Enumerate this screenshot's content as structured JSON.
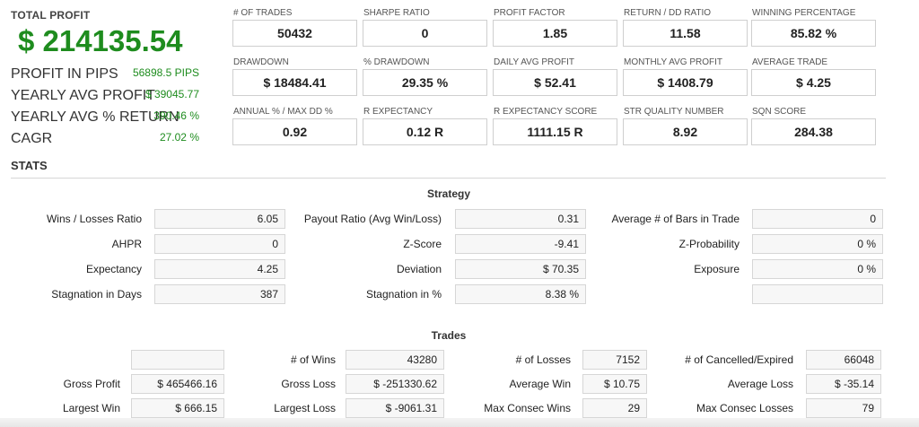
{
  "summary": {
    "total_profit_label": "TOTAL PROFIT",
    "total_profit_value": "$ 214135.54",
    "rows": [
      {
        "label": "PROFIT IN PIPS",
        "value": "56898.5 PIPS"
      },
      {
        "label": "YEARLY AVG PROFIT",
        "value": "$ 39045.77"
      },
      {
        "label": "YEARLY AVG % RETURN",
        "value": "390.46 %"
      },
      {
        "label": "CAGR",
        "value": "27.02 %"
      }
    ]
  },
  "metrics": [
    {
      "label": "# OF TRADES",
      "value": "50432"
    },
    {
      "label": "SHARPE RATIO",
      "value": "0"
    },
    {
      "label": "PROFIT FACTOR",
      "value": "1.85"
    },
    {
      "label": "RETURN / DD RATIO",
      "value": "11.58"
    },
    {
      "label": "WINNING PERCENTAGE",
      "value": "85.82 %"
    },
    {
      "label": "DRAWDOWN",
      "value": "$ 18484.41"
    },
    {
      "label": "% DRAWDOWN",
      "value": "29.35 %"
    },
    {
      "label": "DAILY AVG PROFIT",
      "value": "$ 52.41"
    },
    {
      "label": "MONTHLY AVG PROFIT",
      "value": "$ 1408.79"
    },
    {
      "label": "AVERAGE TRADE",
      "value": "$ 4.25"
    },
    {
      "label": "ANNUAL % / MAX DD %",
      "value": "0.92"
    },
    {
      "label": "R EXPECTANCY",
      "value": "0.12 R"
    },
    {
      "label": "R EXPECTANCY SCORE",
      "value": "1111.15 R"
    },
    {
      "label": "STR QUALITY NUMBER",
      "value": "8.92"
    },
    {
      "label": "SQN SCORE",
      "value": "284.38"
    }
  ],
  "stats": {
    "title": "STATS",
    "strategy": {
      "title": "Strategy",
      "rows": [
        [
          [
            "Wins / Losses Ratio",
            "6.05"
          ],
          [
            "Payout Ratio (Avg Win/Loss)",
            "0.31"
          ],
          [
            "Average # of Bars in Trade",
            "0"
          ]
        ],
        [
          [
            "AHPR",
            "0"
          ],
          [
            "Z-Score",
            "-9.41"
          ],
          [
            "Z-Probability",
            "0 %"
          ]
        ],
        [
          [
            "Expectancy",
            "4.25"
          ],
          [
            "Deviation",
            "$ 70.35"
          ],
          [
            "Exposure",
            "0 %"
          ]
        ],
        [
          [
            "Stagnation in Days",
            "387"
          ],
          [
            "Stagnation in %",
            "8.38 %"
          ],
          [
            "",
            ""
          ]
        ]
      ]
    },
    "trades": {
      "title": "Trades",
      "rows": [
        [
          [
            "",
            ""
          ],
          [
            "# of Wins",
            "43280"
          ],
          [
            "# of Losses",
            "7152"
          ],
          [
            "# of Cancelled/Expired",
            "66048"
          ]
        ],
        [
          [
            "Gross Profit",
            "$ 465466.16"
          ],
          [
            "Gross Loss",
            "$ -251330.62"
          ],
          [
            "Average Win",
            "$ 10.75"
          ],
          [
            "Average Loss",
            "$ -35.14"
          ]
        ],
        [
          [
            "Largest Win",
            "$ 666.15"
          ],
          [
            "Largest Loss",
            "$ -9061.31"
          ],
          [
            "Max Consec Wins",
            "29"
          ],
          [
            "Max Consec Losses",
            "79"
          ]
        ]
      ]
    }
  }
}
